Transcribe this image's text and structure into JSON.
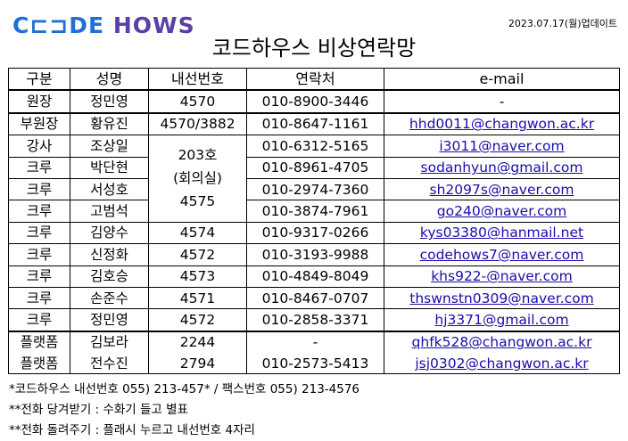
{
  "header": {
    "logo_part1": "C",
    "logo_part2": "DE",
    "logo_part3": "HOWS",
    "update": "2023.07.17(월)업데이트",
    "title": "코드하우스 비상연락망"
  },
  "columns": [
    "구분",
    "성명",
    "내선번호",
    "연락처",
    "e-mail"
  ],
  "rows": [
    {
      "role": "원장",
      "name": "정민영",
      "ext": "4570",
      "phone": "010-8900-3446",
      "email": "-"
    },
    {
      "role": "부원장",
      "name": "황유진",
      "ext": "4570/3882",
      "phone": "010-8647-1161",
      "email": "hhd0011@changwon.ac.kr"
    },
    {
      "role": "강사",
      "name": "조상일",
      "ext": "",
      "phone": "010-6312-5165",
      "email": "i3011@naver.com"
    },
    {
      "role": "크루",
      "name": "박단현",
      "ext": "",
      "phone": "010-8961-4705",
      "email": "sodanhyun@gmail.com"
    },
    {
      "role": "크루",
      "name": "서성호",
      "ext": "",
      "phone": "010-2974-7360",
      "email": "sh2097s@naver.com"
    },
    {
      "role": "크루",
      "name": "고범석",
      "ext": "",
      "phone": "010-3874-7961",
      "email": "go240@naver.com"
    },
    {
      "role": "크루",
      "name": "김양수",
      "ext": "4574",
      "phone": "010-9317-0266",
      "email": "kys03380@hanmail.net"
    },
    {
      "role": "크루",
      "name": "신정화",
      "ext": "4572",
      "phone": "010-3193-9988",
      "email": "codehows7@naver.com"
    },
    {
      "role": "크루",
      "name": "김호승",
      "ext": "4573",
      "phone": "010-4849-8049",
      "email": "khs922-@naver.com"
    },
    {
      "role": "크루",
      "name": "손준수",
      "ext": "4571",
      "phone": "010-8467-0707",
      "email": "thswnstn0309@naver.com"
    },
    {
      "role": "크루",
      "name": "정민영",
      "ext": "4572",
      "phone": "010-2858-3371",
      "email": "hj3371@gmail.com"
    },
    {
      "role": "플랫폼",
      "name": "김보라",
      "ext": "2244",
      "phone": "-",
      "email": "qhfk528@changwon.ac.kr"
    },
    {
      "role": "플랫폼",
      "name": "전수진",
      "ext": "2794",
      "phone": "010-2573-5413",
      "email": "jsj0302@changwon.ac.kr"
    }
  ],
  "shared_ext": {
    "line1": "203호",
    "line2": "(회의실)",
    "line3": "4575"
  },
  "notes": [
    "*코드하우스 내선번호 055) 213-457* / 팩스번호 055) 213-4576",
    "**전화 당겨받기 : 수화기 들고 별표",
    "**전화 돌려주기 : 플래시 누르고 내선번호 4자리"
  ]
}
